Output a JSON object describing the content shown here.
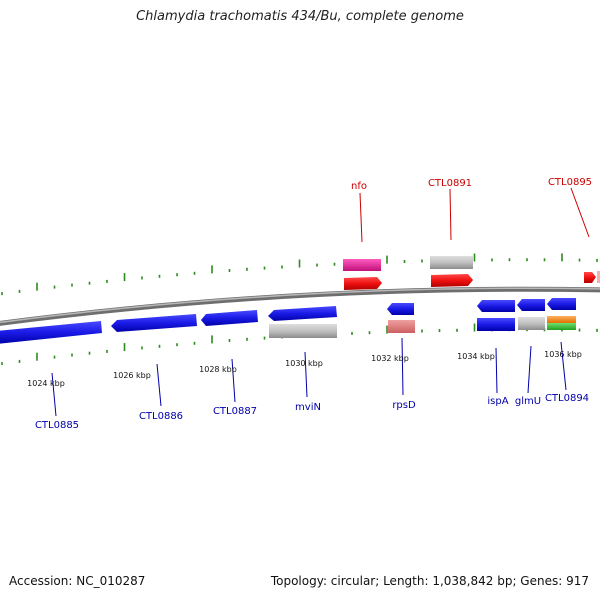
{
  "title": "Chlamydia trachomatis 434/Bu, complete genome",
  "footer": {
    "accession": "Accession: NC_010287",
    "summary": "Topology: circular; Length: 1,038,842 bp; Genes: 917"
  },
  "colors": {
    "backbone": "#8a8a8a",
    "tick": "#2e8b1e",
    "forward_gene": "#1515e0",
    "rna_label": "#cc0000",
    "gene_label": "#0000aa"
  },
  "scale_labels": [
    "1024 kbp",
    "1026 kbp",
    "1028 kbp",
    "1030 kbp",
    "1032 kbp",
    "1034 kbp",
    "1036 kbp"
  ],
  "top_labels": [
    {
      "text": "nfo"
    },
    {
      "text": "CTL0891"
    },
    {
      "text": "CTL0895"
    }
  ],
  "bottom_labels": [
    {
      "text": "CTL0885"
    },
    {
      "text": "CTL0886"
    },
    {
      "text": "CTL0887"
    },
    {
      "text": "mviN"
    },
    {
      "text": "rpsD"
    },
    {
      "text": "ispA"
    },
    {
      "text": "glmU"
    },
    {
      "text": "CTL0894"
    }
  ]
}
